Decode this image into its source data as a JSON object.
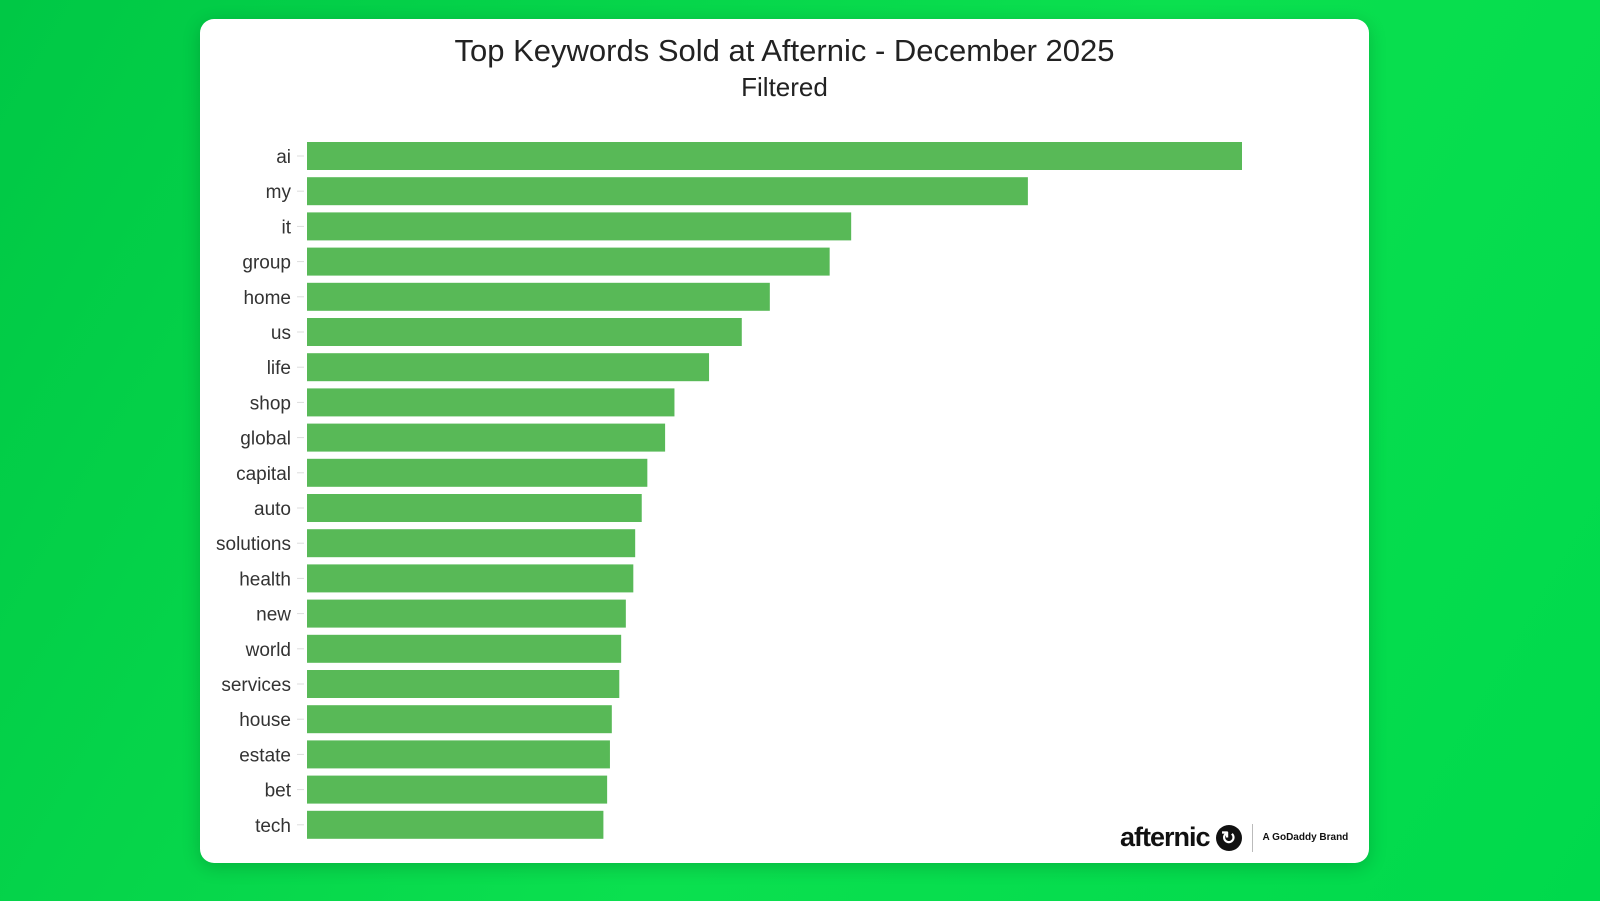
{
  "chart_data": {
    "type": "bar",
    "orientation": "horizontal",
    "title": "Top Keywords Sold at Afternic - December 2025",
    "subtitle": "Filtered",
    "categories": [
      "ai",
      "my",
      "it",
      "group",
      "home",
      "us",
      "life",
      "shop",
      "global",
      "capital",
      "auto",
      "solutions",
      "health",
      "new",
      "world",
      "services",
      "house",
      "estate",
      "bet",
      "tech"
    ],
    "values": [
      100,
      77.1,
      58.2,
      55.9,
      49.5,
      46.5,
      43.0,
      39.3,
      38.3,
      36.4,
      35.8,
      35.1,
      34.9,
      34.1,
      33.6,
      33.4,
      32.6,
      32.4,
      32.1,
      31.7
    ],
    "value_units": "relative (ai = 100); no value axis shown",
    "xlabel": "",
    "ylabel": "",
    "grid": false,
    "legend": "none",
    "bar_color": "#58b957"
  },
  "branding": {
    "logo_text": "afternic",
    "tagline": "A GoDaddy Brand"
  },
  "colors": {
    "background": "#00d94c",
    "card": "#ffffff"
  }
}
